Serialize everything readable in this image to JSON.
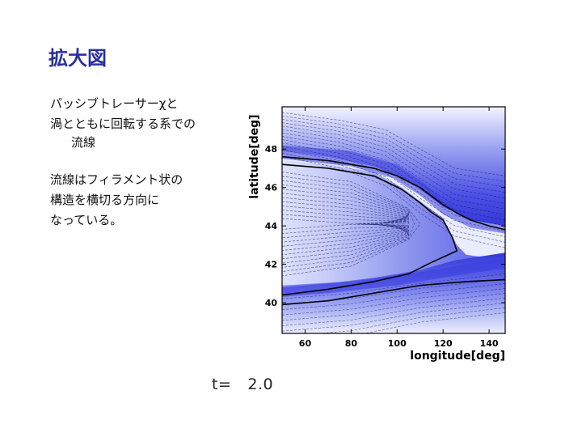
{
  "title": "拡大図",
  "text": {
    "p1_lines": [
      "パッシブトレーサーχと",
      "渦とともに回転する系での"
    ],
    "p1_indent": "流線",
    "p2_lines": [
      "流線はフィラメント状の",
      "構造を横切る方向に",
      "なっている。"
    ]
  },
  "time": {
    "label": "t=",
    "value": "2.0"
  },
  "colors": {
    "title": "#2a2fa0",
    "band_dark": "#3c3fe0",
    "band_light": "#e8ecff"
  },
  "chart_data": {
    "type": "heatmap",
    "xlabel": "longitude[deg]",
    "ylabel": "latitude[deg]",
    "xlim": [
      50,
      147
    ],
    "ylim": [
      38.4,
      50.2
    ],
    "xticks": [
      "60",
      "80",
      "100",
      "120",
      "140"
    ],
    "yticks": [
      "40",
      "42",
      "44",
      "46",
      "48"
    ],
    "streamlines": [
      {
        "name": "",
        "points": [
          [
            50,
            47.6
          ],
          [
            70,
            47.4
          ],
          [
            90,
            47.0
          ],
          [
            100,
            46.6
          ],
          [
            110,
            46.0
          ],
          [
            120,
            45.1
          ],
          [
            127,
            44.6
          ],
          [
            132,
            44.3
          ],
          [
            140,
            44.0
          ],
          [
            147,
            43.8
          ]
        ]
      },
      {
        "name": "",
        "points": [
          [
            50,
            47.2
          ],
          [
            70,
            47.0
          ],
          [
            90,
            46.6
          ],
          [
            102,
            45.9
          ],
          [
            110,
            45.2
          ],
          [
            115,
            44.7
          ],
          [
            120,
            44.3
          ],
          [
            124,
            43.4
          ],
          [
            126,
            42.7
          ],
          [
            115,
            42.1
          ],
          [
            105,
            41.5
          ],
          [
            90,
            41.1
          ],
          [
            70,
            40.7
          ],
          [
            50,
            40.4
          ]
        ]
      },
      {
        "name": "",
        "points": [
          [
            50,
            39.9
          ],
          [
            70,
            40.1
          ],
          [
            90,
            40.5
          ],
          [
            110,
            40.9
          ],
          [
            130,
            41.1
          ],
          [
            147,
            41.2
          ]
        ]
      }
    ]
  }
}
